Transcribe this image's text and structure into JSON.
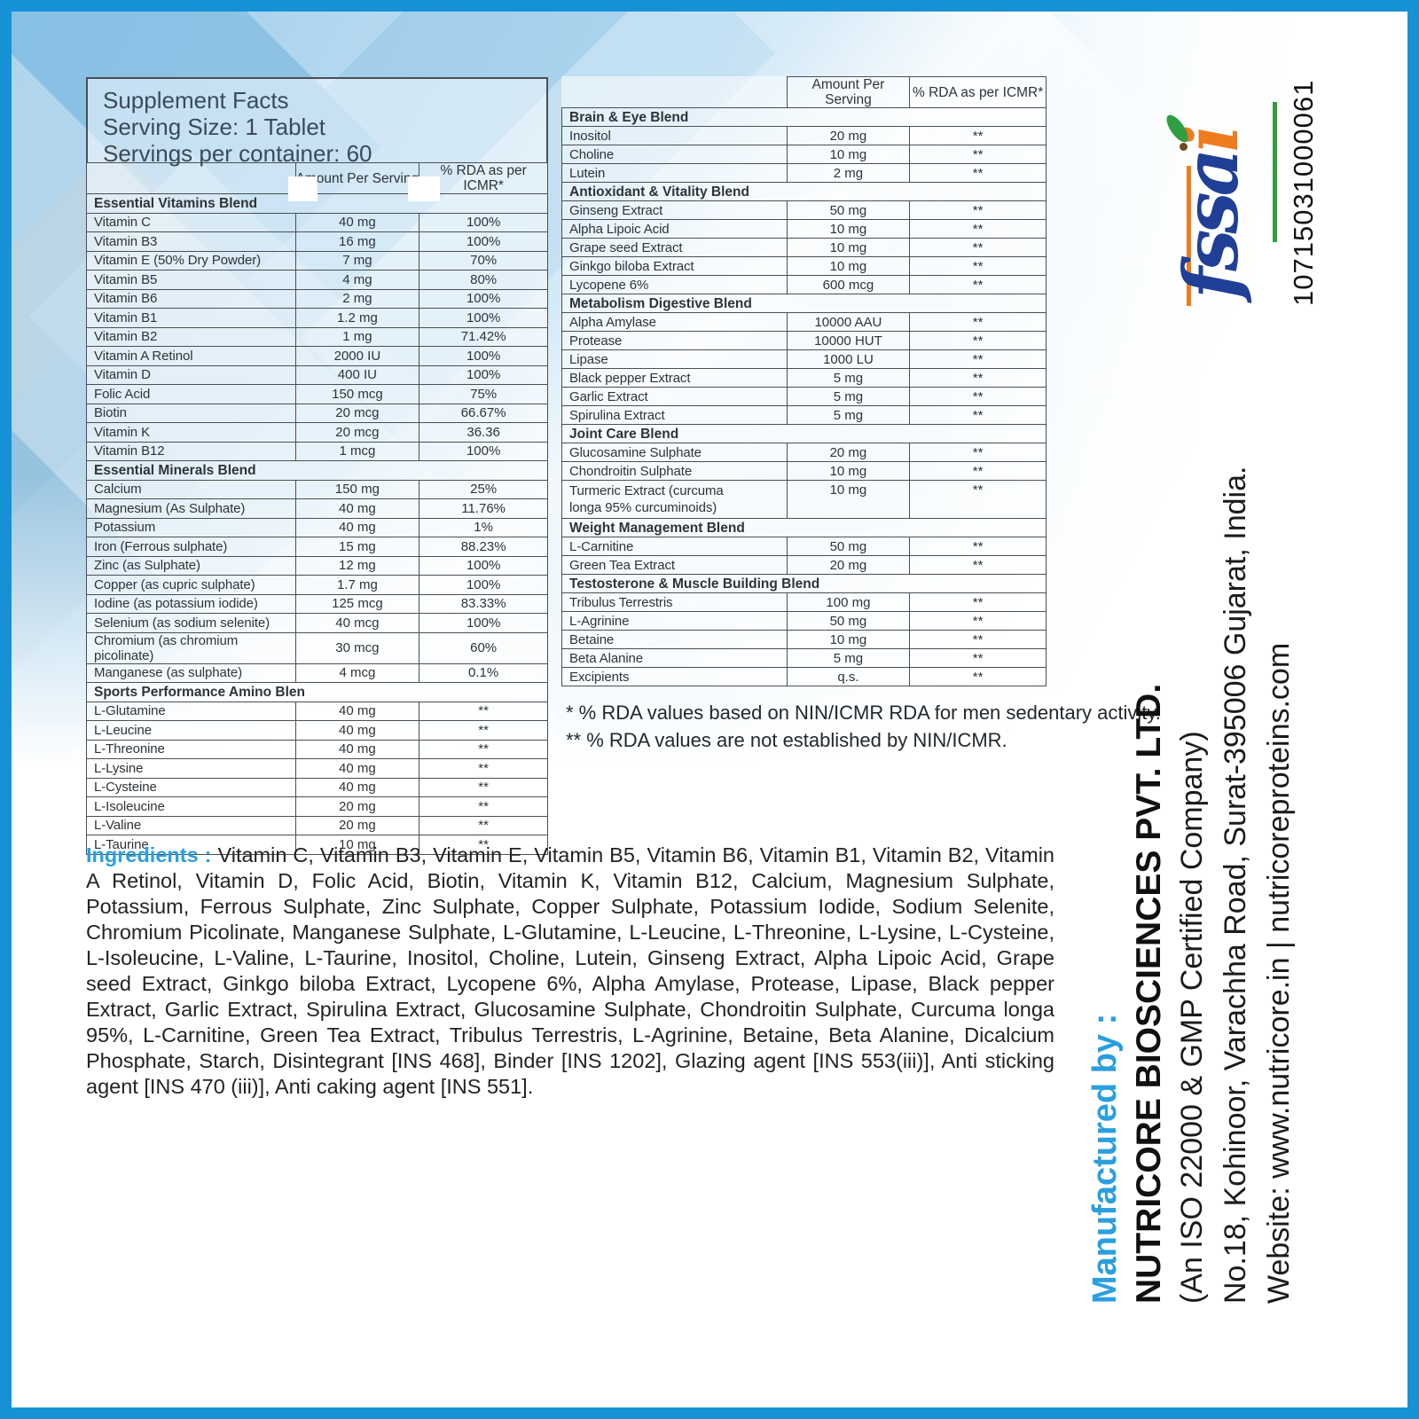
{
  "title_lines": [
    "Supplement Facts",
    "Serving Size: 1 Tablet",
    "Servings per container: 60"
  ],
  "columns": {
    "amount": "Amount Per Serving",
    "rda": "% RDA as per ICMR*"
  },
  "left_rows": [
    {
      "type": "section",
      "name": "Essential Vitamins Blend",
      "patches": true
    },
    {
      "type": "item",
      "name": "Vitamin C",
      "amount": "40 mg",
      "rda": "100%"
    },
    {
      "type": "item",
      "name": "Vitamin B3",
      "amount": "16 mg",
      "rda": "100%"
    },
    {
      "type": "item",
      "name": "Vitamin E (50% Dry Powder)",
      "amount": "7 mg",
      "rda": "70%"
    },
    {
      "type": "item",
      "name": "Vitamin B5",
      "amount": "4 mg",
      "rda": "80%"
    },
    {
      "type": "item",
      "name": "Vitamin B6",
      "amount": "2 mg",
      "rda": "100%"
    },
    {
      "type": "item",
      "name": "Vitamin B1",
      "amount": "1.2 mg",
      "rda": "100%"
    },
    {
      "type": "item",
      "name": "Vitamin B2",
      "amount": "1 mg",
      "rda": "71.42%"
    },
    {
      "type": "item",
      "name": "Vitamin A Retinol",
      "amount": "2000 IU",
      "rda": "100%"
    },
    {
      "type": "item",
      "name": "Vitamin D",
      "amount": "400 IU",
      "rda": "100%"
    },
    {
      "type": "item",
      "name": "Folic Acid",
      "amount": "150 mcg",
      "rda": "75%"
    },
    {
      "type": "item",
      "name": "Biotin",
      "amount": "20 mcg",
      "rda": "66.67%"
    },
    {
      "type": "item",
      "name": "Vitamin K",
      "amount": "20 mcg",
      "rda": "36.36"
    },
    {
      "type": "item",
      "name": "Vitamin B12",
      "amount": "1 mcg",
      "rda": "100%"
    },
    {
      "type": "section",
      "name": "Essential Minerals Blend"
    },
    {
      "type": "item",
      "name": "Calcium",
      "amount": "150 mg",
      "rda": "25%"
    },
    {
      "type": "item",
      "name": "Magnesium (As Sulphate)",
      "amount": "40 mg",
      "rda": "11.76%"
    },
    {
      "type": "item",
      "name": "Potassium",
      "amount": "40 mg",
      "rda": "1%"
    },
    {
      "type": "item",
      "name": "Iron (Ferrous sulphate)",
      "amount": "15 mg",
      "rda": "88.23%"
    },
    {
      "type": "item",
      "name": "Zinc (as Sulphate)",
      "amount": "12 mg",
      "rda": "100%"
    },
    {
      "type": "item",
      "name": "Copper (as cupric sulphate)",
      "amount": "1.7 mg",
      "rda": "100%"
    },
    {
      "type": "item",
      "name": "Iodine (as potassium iodide)",
      "amount": "125 mcg",
      "rda": "83.33%"
    },
    {
      "type": "item",
      "name": "Selenium (as sodium selenite)",
      "amount": "40 mcg",
      "rda": "100%"
    },
    {
      "type": "item",
      "name": "Chromium (as chromium picolinate)",
      "amount": "30 mcg",
      "rda": "60%"
    },
    {
      "type": "item",
      "name": "Manganese (as sulphate)",
      "amount": "4 mcg",
      "rda": "0.1%"
    },
    {
      "type": "section",
      "name": "Sports Performance Amino Blen"
    },
    {
      "type": "item",
      "name": "L-Glutamine",
      "amount": "40 mg",
      "rda": "**"
    },
    {
      "type": "item",
      "name": "L-Leucine",
      "amount": "40 mg",
      "rda": "**"
    },
    {
      "type": "item",
      "name": "L-Threonine",
      "amount": "40 mg",
      "rda": "**"
    },
    {
      "type": "item",
      "name": "L-Lysine",
      "amount": "40 mg",
      "rda": "**"
    },
    {
      "type": "item",
      "name": "L-Cysteine",
      "amount": "40 mg",
      "rda": "**"
    },
    {
      "type": "item",
      "name": "L-Isoleucine",
      "amount": "20 mg",
      "rda": "**"
    },
    {
      "type": "item",
      "name": "L-Valine",
      "amount": "20 mg",
      "rda": "**"
    },
    {
      "type": "item",
      "name": "L-Taurine",
      "amount": "10 mg",
      "rda": "**"
    }
  ],
  "right_rows": [
    {
      "type": "section",
      "name": "Brain & Eye Blend"
    },
    {
      "type": "item",
      "name": "Inositol",
      "amount": "20 mg",
      "rda": "**"
    },
    {
      "type": "item",
      "name": "Choline",
      "amount": "10 mg",
      "rda": "**"
    },
    {
      "type": "item",
      "name": "Lutein",
      "amount": "2 mg",
      "rda": "**"
    },
    {
      "type": "section",
      "name": "Antioxidant & Vitality Blend"
    },
    {
      "type": "item",
      "name": "Ginseng Extract",
      "amount": "50 mg",
      "rda": "**"
    },
    {
      "type": "item",
      "name": "Alpha Lipoic Acid",
      "amount": "10 mg",
      "rda": "**"
    },
    {
      "type": "item",
      "name": "Grape seed Extract",
      "amount": "10 mg",
      "rda": "**"
    },
    {
      "type": "item",
      "name": "Ginkgo biloba Extract",
      "amount": "10 mg",
      "rda": "**"
    },
    {
      "type": "item",
      "name": "Lycopene 6%",
      "amount": "600 mcg",
      "rda": "**"
    },
    {
      "type": "section",
      "name": "Metabolism Digestive Blend"
    },
    {
      "type": "item",
      "name": "Alpha Amylase",
      "amount": "10000 AAU",
      "rda": "**"
    },
    {
      "type": "item",
      "name": "Protease",
      "amount": "10000 HUT",
      "rda": "**"
    },
    {
      "type": "item",
      "name": "Lipase",
      "amount": "1000 LU",
      "rda": "**"
    },
    {
      "type": "item",
      "name": "Black pepper Extract",
      "amount": "5 mg",
      "rda": "**"
    },
    {
      "type": "item",
      "name": "Garlic Extract",
      "amount": "5 mg",
      "rda": "**"
    },
    {
      "type": "item",
      "name": "Spirulina Extract",
      "amount": "5 mg",
      "rda": "**"
    },
    {
      "type": "section",
      "name": "Joint Care Blend"
    },
    {
      "type": "item",
      "name": "Glucosamine Sulphate",
      "amount": "20 mg",
      "rda": "**"
    },
    {
      "type": "item",
      "name": "Chondroitin Sulphate",
      "amount": "10 mg",
      "rda": "**"
    },
    {
      "type": "item",
      "name": "Turmeric Extract (curcuma\nlonga 95% curcuminoids)",
      "amount": "10 mg",
      "rda": "**",
      "tall": true
    },
    {
      "type": "section",
      "name": "Weight Management Blend"
    },
    {
      "type": "item",
      "name": "L-Carnitine",
      "amount": "50 mg",
      "rda": "**"
    },
    {
      "type": "item",
      "name": "Green Tea Extract",
      "amount": "20 mg",
      "rda": "**"
    },
    {
      "type": "section",
      "name": "Testosterone & Muscle Building Blend"
    },
    {
      "type": "item",
      "name": "Tribulus Terrestris",
      "amount": "100 mg",
      "rda": "**"
    },
    {
      "type": "item",
      "name": "L-Agrinine",
      "amount": "50 mg",
      "rda": "**"
    },
    {
      "type": "item",
      "name": "Betaine",
      "amount": "10 mg",
      "rda": "**"
    },
    {
      "type": "item",
      "name": "Beta Alanine",
      "amount": "5 mg",
      "rda": "**"
    },
    {
      "type": "item",
      "name": "Excipients",
      "amount": "q.s.",
      "rda": "**"
    }
  ],
  "footnotes": [
    "* % RDA values based on NIN/ICMR RDA for men sedentary activity.",
    "** % RDA values are not established by NIN/ICMR."
  ],
  "ingredients": {
    "label": "Ingredients :",
    "text": " Vitamin C, Vitamin B3, Vitamin E, Vitamin B5, Vitamin B6, Vitamin B1, Vitamin B2, Vitamin A Retinol, Vitamin D, Folic Acid, Biotin, Vitamin K, Vitamin B12, Calcium, Magnesium Sulphate, Potassium, Ferrous Sulphate, Zinc Sulphate, Copper Sulphate, Potassium Iodide, Sodium Selenite, Chromium Picolinate, Manganese Sulphate, L-Glutamine, L-Leucine, L-Threonine, L-Lysine, L-Cysteine, L-Isoleucine, L-Valine, L-Taurine, Inositol, Choline, Lutein, Ginseng Extract, Alpha Lipoic Acid, Grape seed Extract, Ginkgo biloba Extract, Lycopene 6%, Alpha Amylase, Protease, Lipase, Black pepper Extract, Garlic Extract, Spirulina Extract, Glucosamine Sulphate, Chondroitin Sulphate, Curcuma longa 95%, L-Carnitine, Green Tea Extract, Tribulus Terrestris, L-Agrinine, Betaine, Beta Alanine, Dicalcium Phosphate, Starch, Disintegrant [INS 468], Binder [INS 1202], Glazing agent [INS 553(iii)], Anti sticking agent [INS 470 (iii)], Anti caking agent [INS 551]."
  },
  "manufacturer": {
    "lines": [
      "Manufactured by :",
      "NUTRICORE BIOSCIENCES PVT. LTD.",
      "(An ISO 22000 & GMP Certified Company)",
      "No.18, Kohinoor, Varachha Road, Surat-395006 Gujarat, India.",
      "Website: www.nutricore.in | nutricoreproteins.com"
    ]
  },
  "fssai": {
    "logo_prefix": "fssa",
    "logo_suffix": "i",
    "license_number": "10715031000061"
  },
  "colors": {
    "frame_blue": "#1791d6",
    "accent_blue": "#2b9fdd",
    "fssai_blue": "#203f97",
    "fssai_orange": "#ef7b1f",
    "fssai_green": "#2f9e41"
  }
}
